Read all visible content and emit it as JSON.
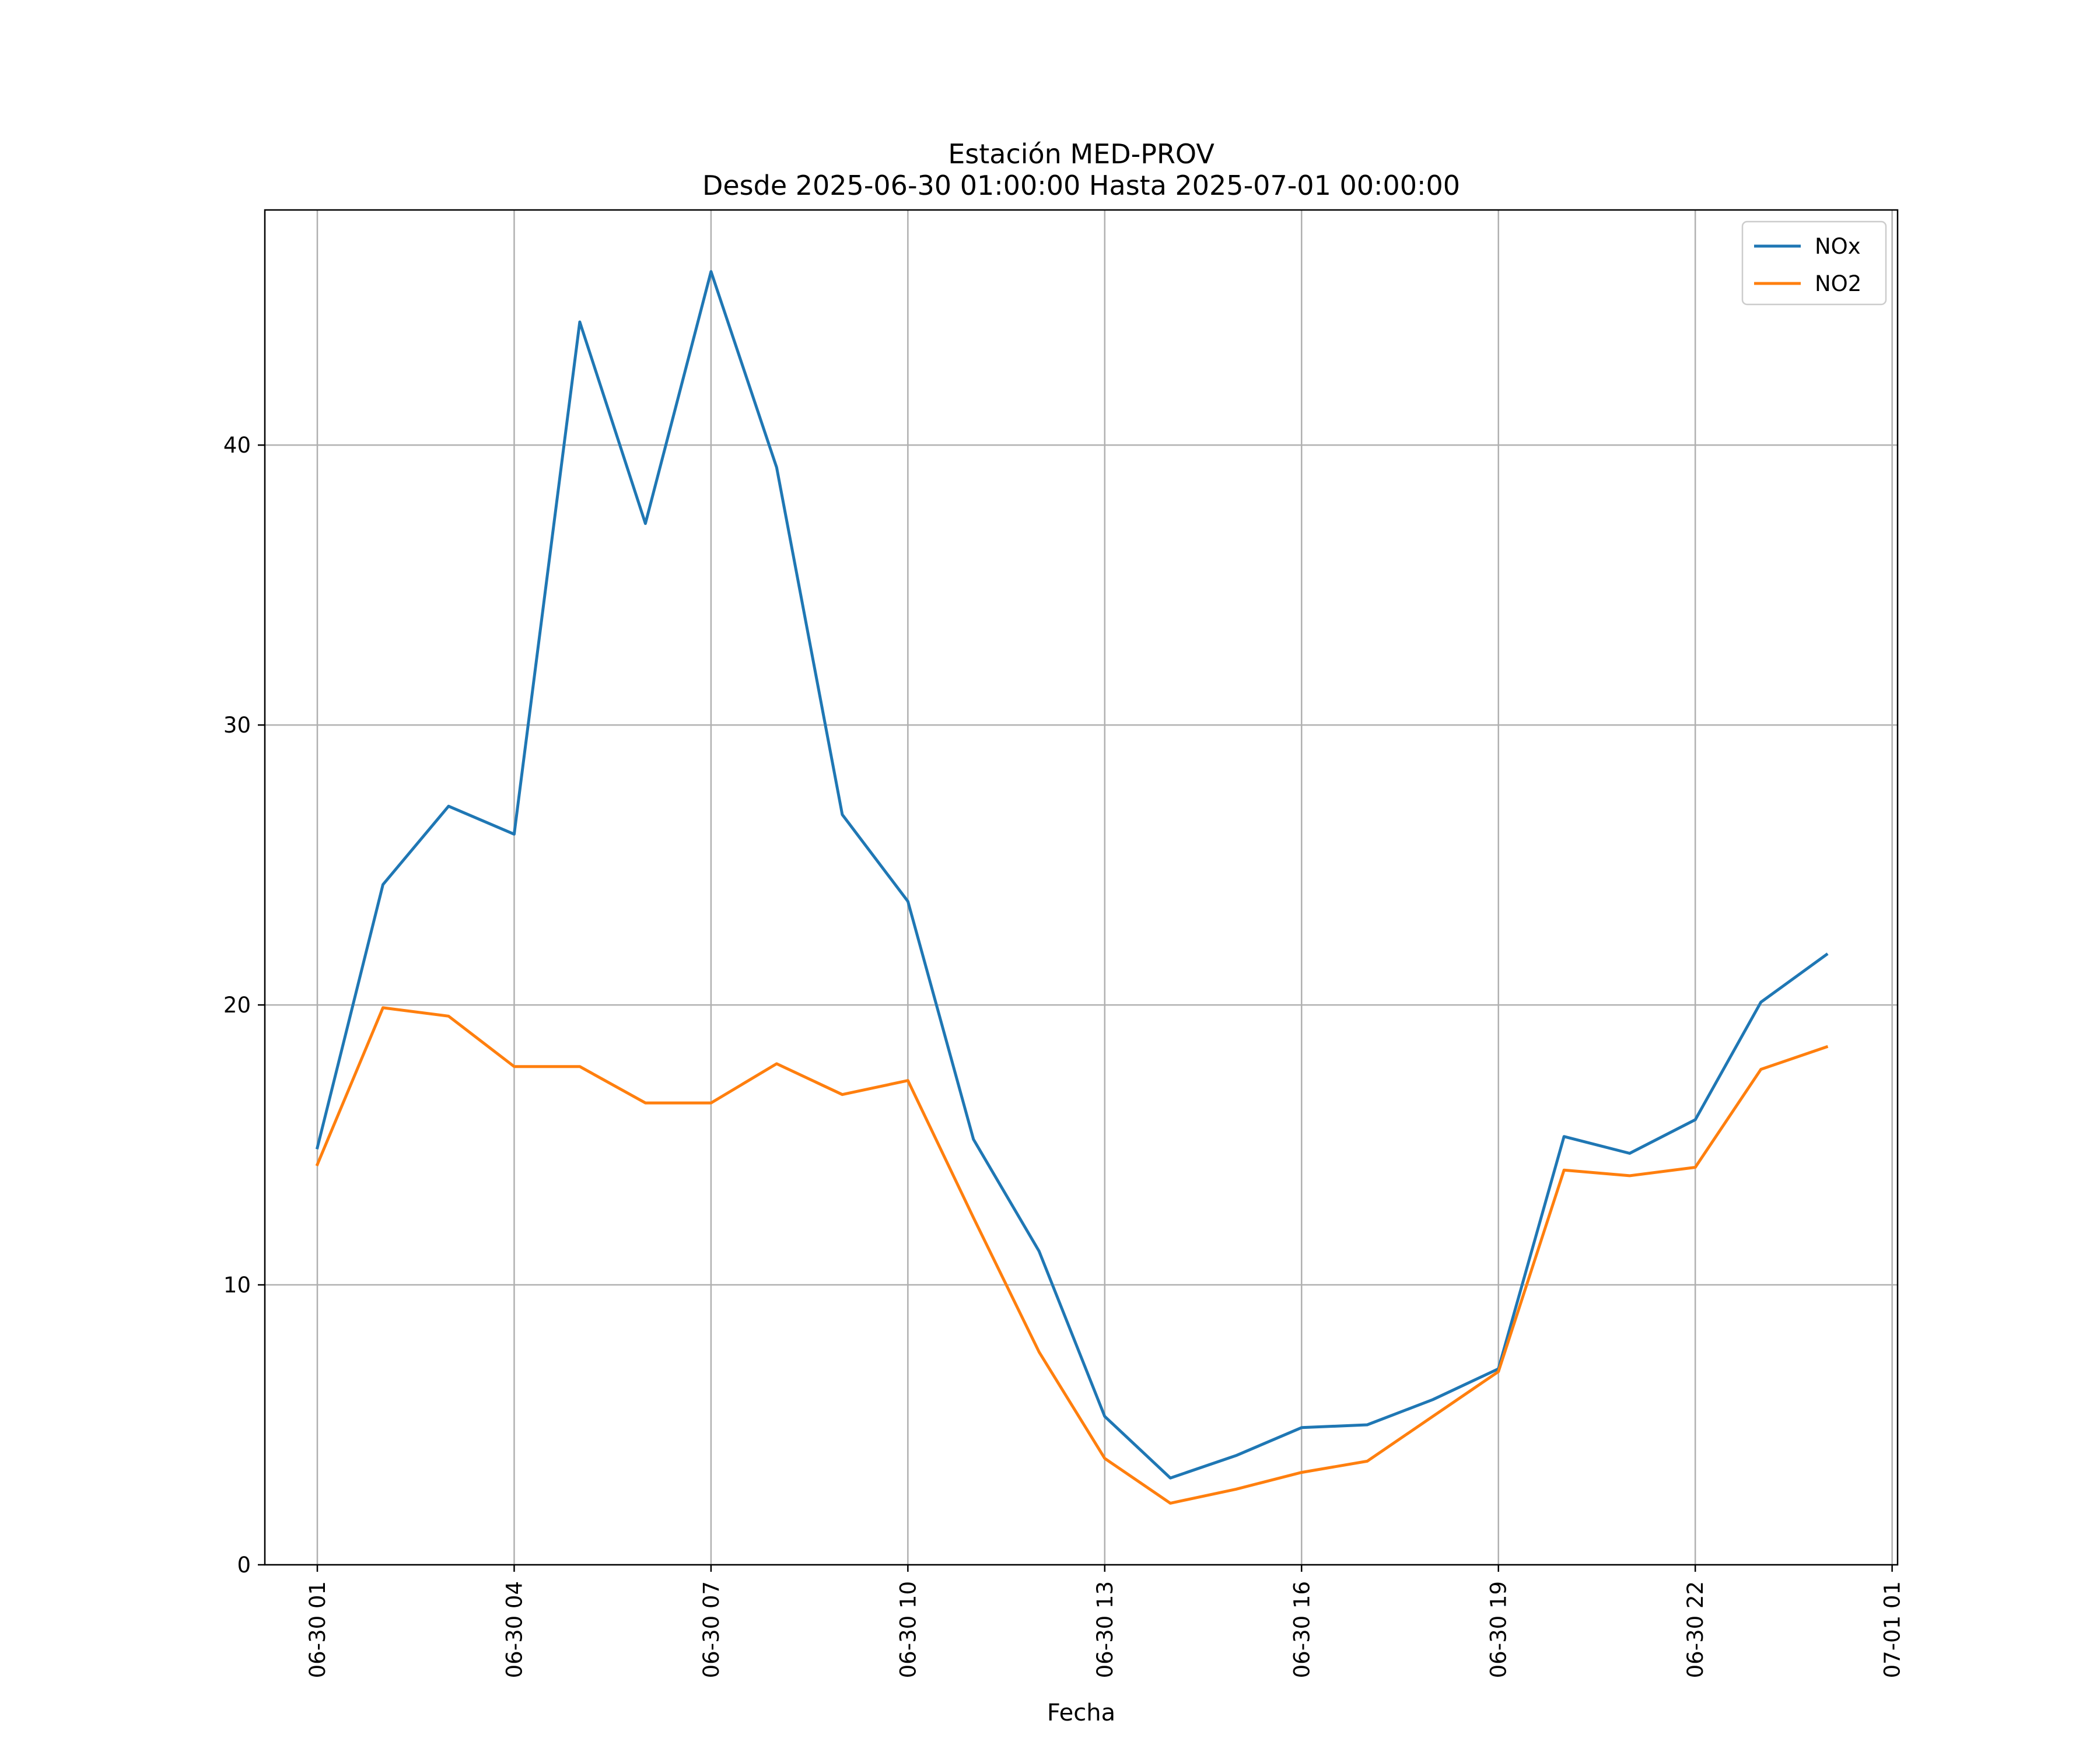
{
  "chart_data": {
    "type": "line",
    "title": "Estación MED-PROV",
    "subtitle": "Desde 2025-06-30 01:00:00 Hasta 2025-07-01 00:00:00",
    "xlabel": "Fecha",
    "ylabel": "",
    "x": [
      "06-30 01",
      "06-30 02",
      "06-30 03",
      "06-30 04",
      "06-30 05",
      "06-30 06",
      "06-30 07",
      "06-30 08",
      "06-30 09",
      "06-30 10",
      "06-30 11",
      "06-30 12",
      "06-30 13",
      "06-30 14",
      "06-30 15",
      "06-30 16",
      "06-30 17",
      "06-30 18",
      "06-30 19",
      "06-30 20",
      "06-30 21",
      "06-30 22",
      "06-30 23",
      "07-01 00"
    ],
    "x_ticks": [
      "06-30 01",
      "06-30 04",
      "06-30 07",
      "06-30 10",
      "06-30 13",
      "06-30 16",
      "06-30 19",
      "06-30 22",
      "07-01 01"
    ],
    "xlim": [
      "06-30 00:12",
      "07-01 01:05"
    ],
    "ylim": [
      0,
      48.4
    ],
    "y_ticks": [
      0,
      10,
      20,
      30,
      40
    ],
    "grid": true,
    "legend_position": "top-right",
    "series": [
      {
        "name": "NOx",
        "color": "#1f77b4",
        "values": [
          14.9,
          24.3,
          27.1,
          26.1,
          44.4,
          37.2,
          46.2,
          39.2,
          26.8,
          23.7,
          15.2,
          11.2,
          5.3,
          3.1,
          3.9,
          4.9,
          5.0,
          5.9,
          7.0,
          15.3,
          14.7,
          15.9,
          20.1,
          21.8
        ]
      },
      {
        "name": "NO2",
        "color": "#ff7f0e",
        "values": [
          14.3,
          19.9,
          19.6,
          17.8,
          17.8,
          16.5,
          16.5,
          17.9,
          16.8,
          17.3,
          12.4,
          7.6,
          3.8,
          2.2,
          2.7,
          3.3,
          3.7,
          5.3,
          6.9,
          14.1,
          13.9,
          14.2,
          17.7,
          18.5
        ]
      }
    ]
  }
}
